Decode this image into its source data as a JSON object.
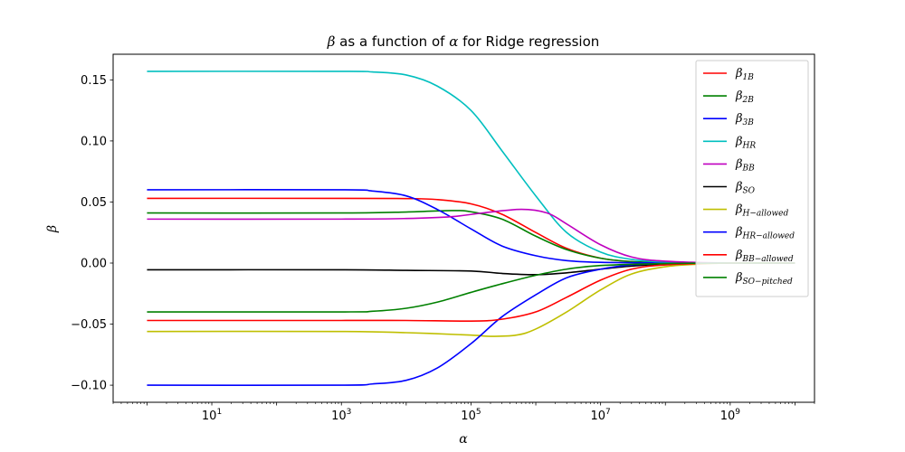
{
  "chart_data": {
    "type": "line",
    "title_parts": {
      "beta_symbol": "β",
      "middle": " as a function of ",
      "alpha_symbol": "α",
      "end": " for Ridge regression"
    },
    "xlabel": "α",
    "ylabel": "β",
    "x_scale": "log",
    "xlim": [
      0.3,
      20000000000.0
    ],
    "ylim": [
      -0.114,
      0.171
    ],
    "x_ticks": [
      {
        "value": 10,
        "base": "10",
        "exp": "1"
      },
      {
        "value": 1000,
        "base": "10",
        "exp": "3"
      },
      {
        "value": 100000,
        "base": "10",
        "exp": "5"
      },
      {
        "value": 10000000,
        "base": "10",
        "exp": "7"
      },
      {
        "value": 1000000000,
        "base": "10",
        "exp": "9"
      }
    ],
    "y_ticks": [
      {
        "value": 0.15,
        "label": "0.15"
      },
      {
        "value": 0.1,
        "label": "0.10"
      },
      {
        "value": 0.05,
        "label": "0.05"
      },
      {
        "value": 0.0,
        "label": "0.00"
      },
      {
        "value": -0.05,
        "label": "−0.05"
      },
      {
        "value": -0.1,
        "label": "−0.10"
      }
    ],
    "grid": false,
    "legend_position": "upper-right",
    "series": [
      {
        "name": "β_1B",
        "sym": "β",
        "sub": "1B",
        "color": "#ff0000",
        "points": [
          [
            1,
            0.053
          ],
          [
            1000,
            0.053
          ],
          [
            10000,
            0.0528
          ],
          [
            30000,
            0.052
          ],
          [
            100000,
            0.0485
          ],
          [
            300000,
            0.04
          ],
          [
            1000000,
            0.025
          ],
          [
            3000000,
            0.012
          ],
          [
            10000000,
            0.004
          ],
          [
            30000000,
            0.0012
          ],
          [
            100000000,
            0.0003
          ],
          [
            1000000000,
            0.0
          ],
          [
            10000000000,
            0.0
          ]
        ]
      },
      {
        "name": "β_2B",
        "sym": "β",
        "sub": "2B",
        "color": "#008000",
        "points": [
          [
            1,
            0.041
          ],
          [
            1000,
            0.041
          ],
          [
            10000,
            0.0418
          ],
          [
            50000,
            0.043
          ],
          [
            100000,
            0.042
          ],
          [
            300000,
            0.036
          ],
          [
            1000000,
            0.022
          ],
          [
            3000000,
            0.011
          ],
          [
            10000000,
            0.004
          ],
          [
            30000000,
            0.0012
          ],
          [
            100000000,
            0.0003
          ],
          [
            1000000000,
            0.0
          ],
          [
            10000000000,
            0.0
          ]
        ]
      },
      {
        "name": "β_3B",
        "sym": "β",
        "sub": "3B",
        "color": "#0000ff",
        "points": [
          [
            1,
            0.06
          ],
          [
            1000,
            0.06
          ],
          [
            3000,
            0.059
          ],
          [
            10000,
            0.055
          ],
          [
            30000,
            0.044
          ],
          [
            100000,
            0.028
          ],
          [
            300000,
            0.014
          ],
          [
            1000000,
            0.006
          ],
          [
            3000000,
            0.002
          ],
          [
            10000000,
            0.0006
          ],
          [
            100000000,
            0.0001
          ],
          [
            1000000000,
            0.0
          ],
          [
            10000000000,
            0.0
          ]
        ]
      },
      {
        "name": "β_HR",
        "sym": "β",
        "sub": "HR",
        "color": "#00bfbf",
        "points": [
          [
            1,
            0.157
          ],
          [
            1000,
            0.157
          ],
          [
            3000,
            0.1565
          ],
          [
            10000,
            0.154
          ],
          [
            30000,
            0.145
          ],
          [
            100000,
            0.125
          ],
          [
            300000,
            0.092
          ],
          [
            1000000,
            0.055
          ],
          [
            3000000,
            0.025
          ],
          [
            10000000,
            0.009
          ],
          [
            30000000,
            0.003
          ],
          [
            100000000,
            0.0008
          ],
          [
            1000000000,
            0.0
          ],
          [
            10000000000,
            0.0
          ]
        ]
      },
      {
        "name": "β_BB",
        "sym": "β",
        "sub": "BB",
        "color": "#bf00bf",
        "points": [
          [
            1,
            0.036
          ],
          [
            1000,
            0.036
          ],
          [
            10000,
            0.0365
          ],
          [
            50000,
            0.038
          ],
          [
            150000,
            0.041
          ],
          [
            600000,
            0.044
          ],
          [
            1500000,
            0.041
          ],
          [
            3000000,
            0.032
          ],
          [
            10000000,
            0.015
          ],
          [
            30000000,
            0.005
          ],
          [
            100000000,
            0.0015
          ],
          [
            1000000000,
            0.0
          ],
          [
            10000000000,
            0.0
          ]
        ]
      },
      {
        "name": "β_SO",
        "sym": "β",
        "sub": "SO",
        "color": "#000000",
        "points": [
          [
            1,
            -0.0055
          ],
          [
            1000,
            -0.0055
          ],
          [
            10000,
            -0.006
          ],
          [
            100000,
            -0.0065
          ],
          [
            300000,
            -0.0085
          ],
          [
            1000000,
            -0.0095
          ],
          [
            3000000,
            -0.008
          ],
          [
            10000000,
            -0.005
          ],
          [
            30000000,
            -0.0025
          ],
          [
            100000000,
            -0.0008
          ],
          [
            1000000000,
            0.0
          ],
          [
            10000000000,
            0.0
          ]
        ]
      },
      {
        "name": "β_H−allowed",
        "sym": "β",
        "sub": "H−allowed",
        "color": "#bfbf00",
        "points": [
          [
            1,
            -0.056
          ],
          [
            1000,
            -0.056
          ],
          [
            10000,
            -0.057
          ],
          [
            100000,
            -0.059
          ],
          [
            200000,
            -0.06
          ],
          [
            500000,
            -0.059
          ],
          [
            1000000,
            -0.054
          ],
          [
            3000000,
            -0.04
          ],
          [
            10000000,
            -0.022
          ],
          [
            30000000,
            -0.009
          ],
          [
            100000000,
            -0.003
          ],
          [
            300000000,
            -0.001
          ],
          [
            1000000000,
            0.0
          ],
          [
            10000000000,
            0.0
          ]
        ]
      },
      {
        "name": "β_HR−allowed",
        "sym": "β",
        "sub": "HR−allowed",
        "color": "#0000ff",
        "points": [
          [
            1,
            -0.1
          ],
          [
            1000,
            -0.1
          ],
          [
            3000,
            -0.099
          ],
          [
            10000,
            -0.096
          ],
          [
            30000,
            -0.086
          ],
          [
            100000,
            -0.066
          ],
          [
            300000,
            -0.044
          ],
          [
            1000000,
            -0.026
          ],
          [
            3000000,
            -0.012
          ],
          [
            10000000,
            -0.005
          ],
          [
            30000000,
            -0.0015
          ],
          [
            100000000,
            -0.0004
          ],
          [
            1000000000,
            0.0
          ],
          [
            10000000000,
            0.0
          ]
        ]
      },
      {
        "name": "β_BB−allowed",
        "sym": "β",
        "sub": "BB−allowed",
        "color": "#ff0000",
        "points": [
          [
            1,
            -0.047
          ],
          [
            1000,
            -0.047
          ],
          [
            10000,
            -0.047
          ],
          [
            100000,
            -0.0475
          ],
          [
            300000,
            -0.046
          ],
          [
            1000000,
            -0.04
          ],
          [
            3000000,
            -0.028
          ],
          [
            10000000,
            -0.014
          ],
          [
            30000000,
            -0.005
          ],
          [
            100000000,
            -0.0015
          ],
          [
            1000000000,
            0.0
          ],
          [
            10000000000,
            0.0
          ]
        ]
      },
      {
        "name": "β_SO−pitched",
        "sym": "β",
        "sub": "SO−pitched",
        "color": "#008000",
        "points": [
          [
            1,
            -0.04
          ],
          [
            1000,
            -0.04
          ],
          [
            3000,
            -0.0395
          ],
          [
            10000,
            -0.037
          ],
          [
            30000,
            -0.032
          ],
          [
            100000,
            -0.024
          ],
          [
            300000,
            -0.017
          ],
          [
            1000000,
            -0.01
          ],
          [
            3000000,
            -0.005
          ],
          [
            10000000,
            -0.002
          ],
          [
            100000000,
            -0.0004
          ],
          [
            1000000000,
            0.0
          ],
          [
            10000000000,
            0.0
          ]
        ]
      }
    ]
  }
}
